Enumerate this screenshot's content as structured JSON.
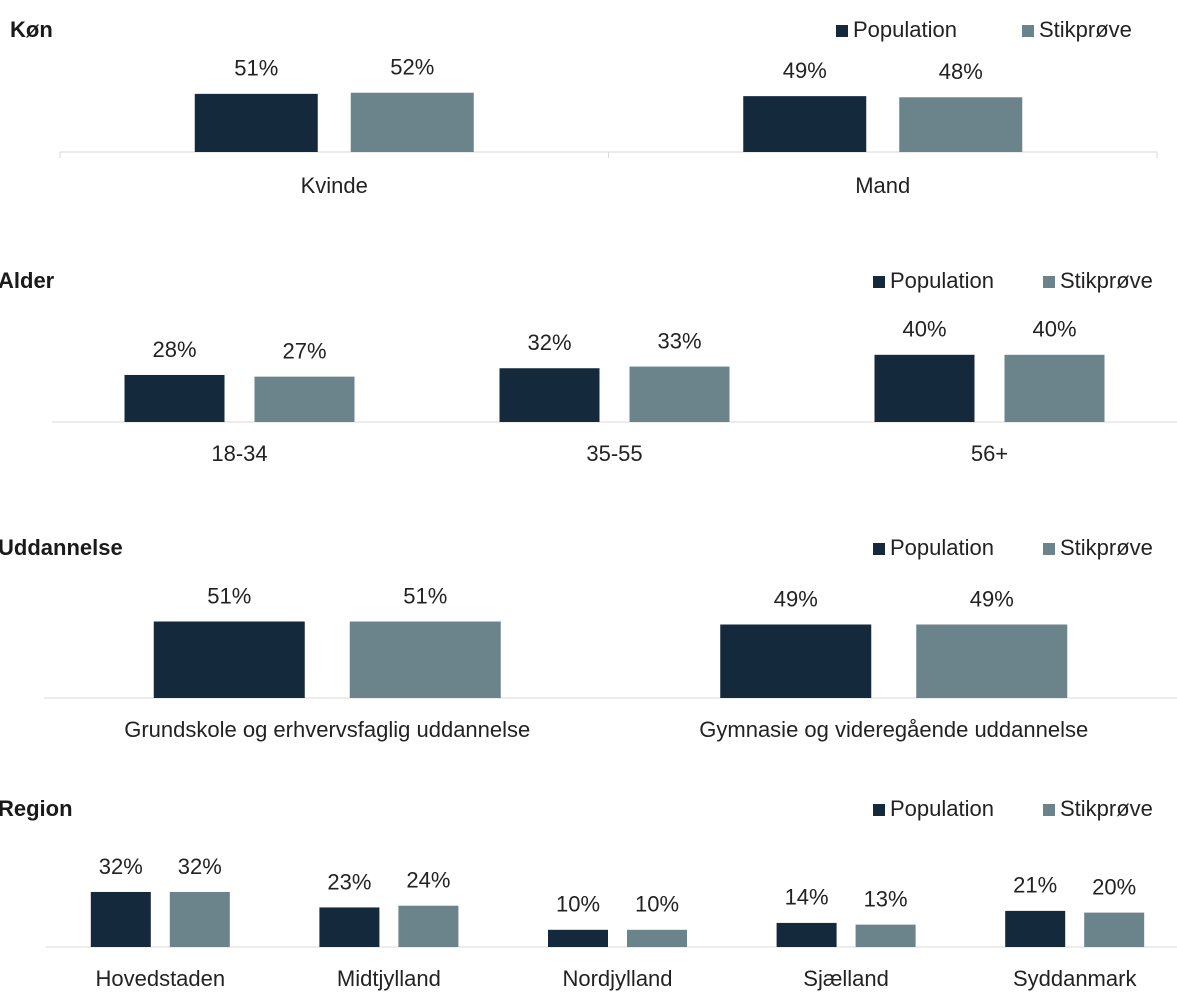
{
  "chart_data": [
    {
      "type": "bar",
      "title": "Køn",
      "categories": [
        "Kvinde",
        "Mand"
      ],
      "series": [
        {
          "name": "Population",
          "color": "#15293d",
          "values": [
            51,
            49
          ],
          "value_labels": [
            "51%",
            "49%"
          ]
        },
        {
          "name": "Stikprøve",
          "color": "#6b838b",
          "values": [
            52,
            48
          ],
          "value_labels": [
            "52%",
            "48%"
          ]
        }
      ]
    },
    {
      "type": "bar",
      "title": "Alder",
      "categories": [
        "18-34",
        "35-55",
        "56+"
      ],
      "series": [
        {
          "name": "Population",
          "color": "#15293d",
          "values": [
            28,
            32,
            40
          ],
          "value_labels": [
            "28%",
            "32%",
            "40%"
          ]
        },
        {
          "name": "Stikprøve",
          "color": "#6b838b",
          "values": [
            27,
            33,
            40
          ],
          "value_labels": [
            "27%",
            "33%",
            "40%"
          ]
        }
      ]
    },
    {
      "type": "bar",
      "title": "Uddannelse",
      "categories": [
        "Grundskole og erhvervsfaglig uddannelse",
        "Gymnasie og videregående uddannelse"
      ],
      "series": [
        {
          "name": "Population",
          "color": "#15293d",
          "values": [
            51,
            49
          ],
          "value_labels": [
            "51%",
            "49%"
          ]
        },
        {
          "name": "Stikprøve",
          "color": "#6b838b",
          "values": [
            51,
            49
          ],
          "value_labels": [
            "51%",
            "49%"
          ]
        }
      ]
    },
    {
      "type": "bar",
      "title": "Region",
      "categories": [
        "Hovedstaden",
        "Midtjylland",
        "Nordjylland",
        "Sjælland",
        "Syddanmark"
      ],
      "series": [
        {
          "name": "Population",
          "color": "#15293d",
          "values": [
            32,
            23,
            10,
            14,
            21
          ],
          "value_labels": [
            "32%",
            "23%",
            "10%",
            "14%",
            "21%"
          ]
        },
        {
          "name": "Stikprøve",
          "color": "#6b838b",
          "values": [
            32,
            24,
            10,
            13,
            20
          ],
          "value_labels": [
            "32%",
            "24%",
            "10%",
            "13%",
            "20%"
          ]
        }
      ]
    }
  ]
}
